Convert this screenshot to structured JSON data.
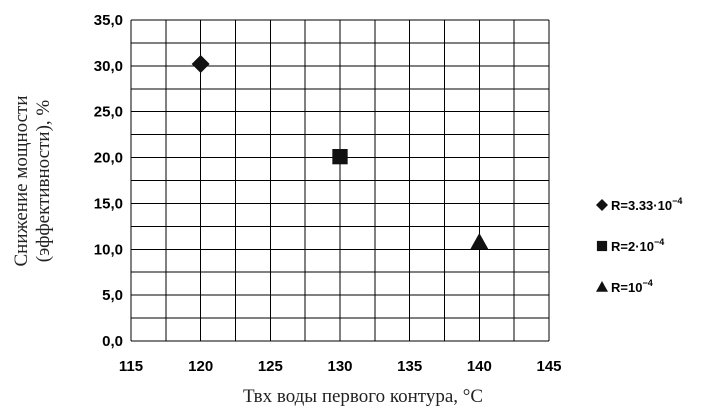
{
  "chart_data": {
    "type": "scatter",
    "title": "",
    "xlabel": "Твх воды первого контура, °С",
    "ylabel_line1": "Снижение мощности",
    "ylabel_line2": "(эффективности), %",
    "xlim": [
      115,
      145
    ],
    "ylim": [
      0,
      35
    ],
    "x_ticks": [
      "115",
      "120",
      "125",
      "130",
      "135",
      "140",
      "145"
    ],
    "y_ticks": [
      "0,0",
      "5,0",
      "10,0",
      "15,0",
      "20,0",
      "25,0",
      "30,0",
      "35,0"
    ],
    "grid": true,
    "x_minor_step": 2.5,
    "y_minor_step": 2.5,
    "legend_position": "right",
    "series": [
      {
        "name": "R=3.33·10⁻⁴",
        "label_base": "R=3.33·10",
        "label_exp": "−4",
        "marker": "diamond",
        "x": [
          120
        ],
        "y": [
          30.2
        ]
      },
      {
        "name": "R=2·10⁻⁴",
        "label_base": "R=2·10",
        "label_exp": "−4",
        "marker": "square",
        "x": [
          130
        ],
        "y": [
          20.1
        ]
      },
      {
        "name": "R=10⁻⁴",
        "label_base": "R=10",
        "label_exp": "−4",
        "marker": "triangle",
        "x": [
          140
        ],
        "y": [
          10.8
        ]
      }
    ],
    "colors": {
      "marker": "#111111",
      "grid": "#000000"
    }
  }
}
